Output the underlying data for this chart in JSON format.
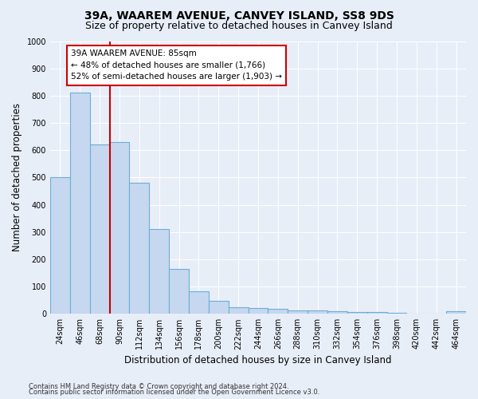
{
  "title": "39A, WAAREM AVENUE, CANVEY ISLAND, SS8 9DS",
  "subtitle": "Size of property relative to detached houses in Canvey Island",
  "xlabel": "Distribution of detached houses by size in Canvey Island",
  "ylabel": "Number of detached properties",
  "categories": [
    "24sqm",
    "46sqm",
    "68sqm",
    "90sqm",
    "112sqm",
    "134sqm",
    "156sqm",
    "178sqm",
    "200sqm",
    "222sqm",
    "244sqm",
    "266sqm",
    "288sqm",
    "310sqm",
    "332sqm",
    "354sqm",
    "376sqm",
    "398sqm",
    "420sqm",
    "442sqm",
    "464sqm"
  ],
  "values": [
    500,
    810,
    620,
    630,
    480,
    310,
    163,
    82,
    46,
    25,
    22,
    18,
    13,
    12,
    9,
    7,
    5,
    3,
    0,
    0,
    10
  ],
  "bar_color": "#c5d8f0",
  "bar_edgecolor": "#6baed6",
  "vline_color": "#cc0000",
  "annotation_text": "39A WAAREM AVENUE: 85sqm\n← 48% of detached houses are smaller (1,766)\n52% of semi-detached houses are larger (1,903) →",
  "annotation_box_facecolor": "#ffffff",
  "annotation_box_edgecolor": "#cc0000",
  "ylim": [
    0,
    1000
  ],
  "yticks": [
    0,
    100,
    200,
    300,
    400,
    500,
    600,
    700,
    800,
    900,
    1000
  ],
  "footer_line1": "Contains HM Land Registry data © Crown copyright and database right 2024.",
  "footer_line2": "Contains public sector information licensed under the Open Government Licence v3.0.",
  "background_color": "#e8eef8",
  "plot_background_color": "#e8eef8",
  "title_fontsize": 10,
  "subtitle_fontsize": 9,
  "xlabel_fontsize": 8.5,
  "ylabel_fontsize": 8.5,
  "tick_fontsize": 7,
  "annotation_fontsize": 7.5,
  "footer_fontsize": 6
}
